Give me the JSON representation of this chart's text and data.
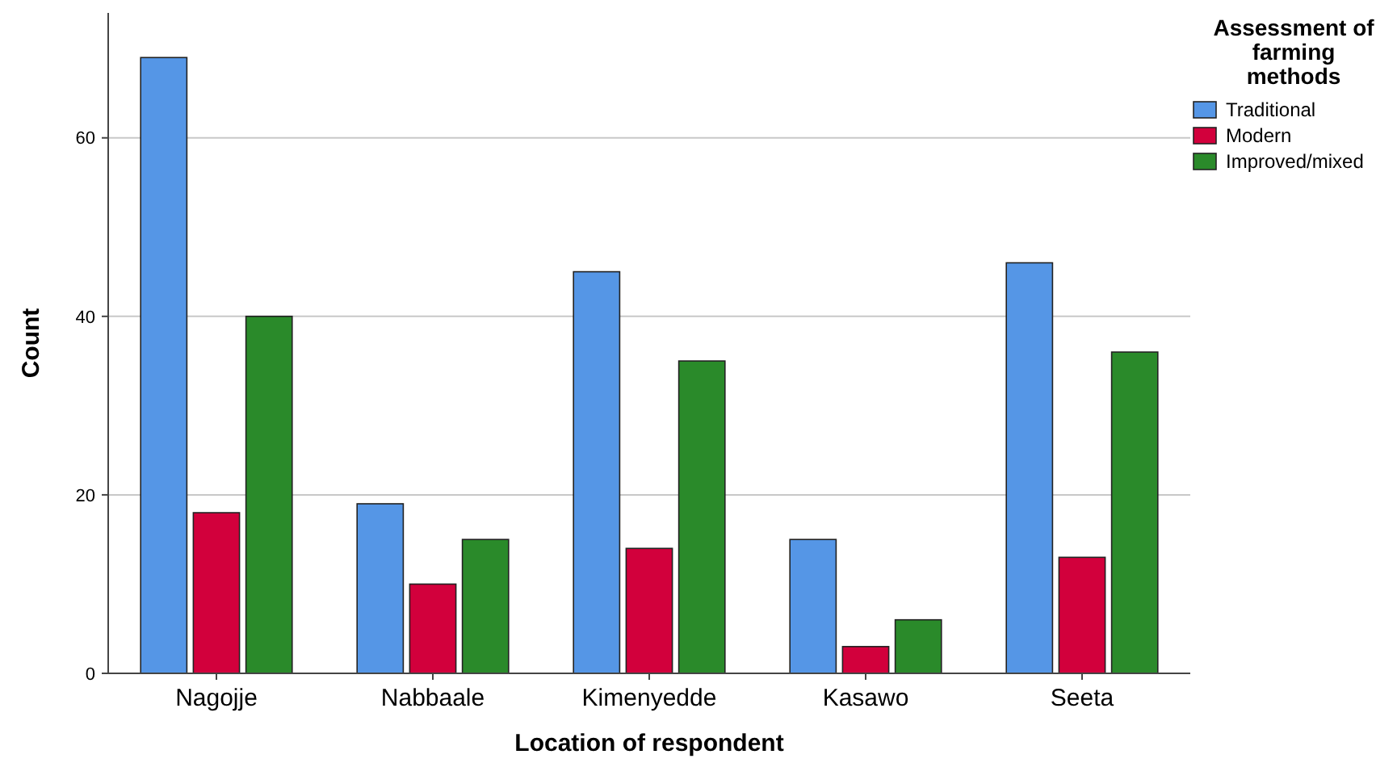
{
  "chart_data": {
    "type": "bar",
    "xlabel": "Location of respondent",
    "ylabel": "Count",
    "legend_title": "Assessment of farming methods",
    "categories": [
      "Nagojje",
      "Nabbaale",
      "Kimenyedde",
      "Kasawo",
      "Seeta"
    ],
    "series": [
      {
        "name": "Traditional",
        "color": "#5596e6",
        "values": [
          69,
          19,
          45,
          15,
          46
        ]
      },
      {
        "name": "Modern",
        "color": "#d2003c",
        "values": [
          18,
          10,
          14,
          3,
          13
        ]
      },
      {
        "name": "Improved/mixed",
        "color": "#2a8a2a",
        "values": [
          40,
          15,
          35,
          6,
          36
        ]
      }
    ],
    "ylim": [
      0,
      74
    ],
    "yticks": [
      0,
      20,
      40,
      60
    ],
    "grid": "y",
    "legend": "top right"
  }
}
